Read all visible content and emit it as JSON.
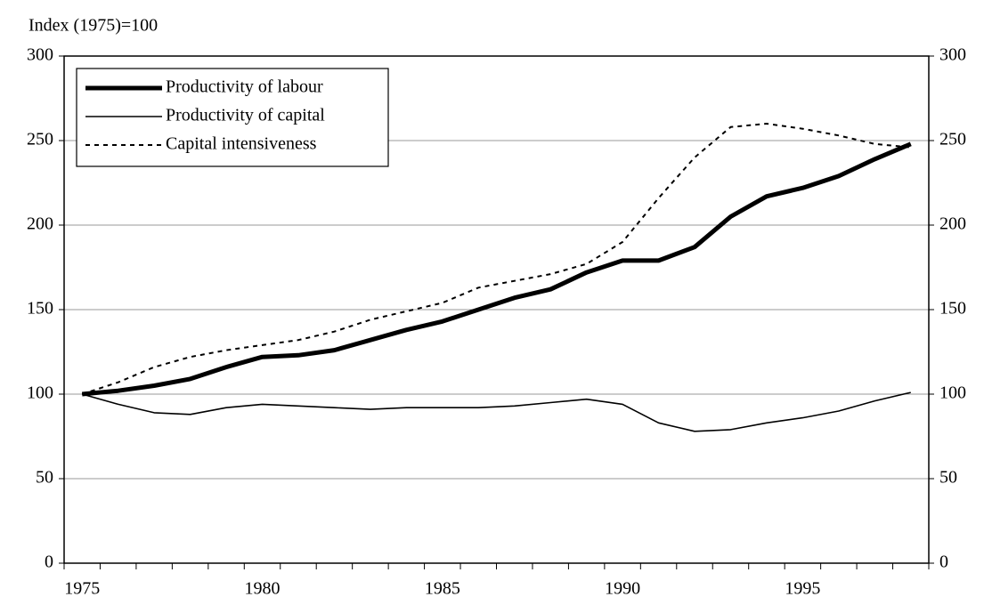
{
  "chart_data": {
    "type": "line",
    "y_label": "Index (1975)=100",
    "categories": [
      "1975",
      null,
      null,
      null,
      null,
      "1980",
      null,
      null,
      null,
      null,
      "1985",
      null,
      null,
      null,
      null,
      "1990",
      null,
      null,
      null,
      null,
      "1995",
      null,
      null,
      null
    ],
    "series": [
      {
        "name": "Productivity of labour",
        "color": "#000000",
        "style": "thick",
        "values": [
          100,
          102,
          105,
          109,
          116,
          122,
          123,
          126,
          132,
          138,
          143,
          150,
          157,
          162,
          172,
          179,
          179,
          187,
          205,
          217,
          222,
          229,
          239,
          248
        ]
      },
      {
        "name": "Productivity of capital",
        "color": "#000000",
        "style": "thin",
        "values": [
          100,
          94,
          89,
          88,
          92,
          94,
          93,
          92,
          91,
          92,
          92,
          92,
          93,
          95,
          97,
          94,
          83,
          78,
          79,
          83,
          86,
          90,
          96,
          101
        ]
      },
      {
        "name": "Capital intensiveness",
        "color": "#000000",
        "style": "dashed",
        "values": [
          100,
          107,
          116,
          122,
          126,
          129,
          132,
          137,
          144,
          149,
          154,
          163,
          167,
          171,
          177,
          190,
          216,
          240,
          258,
          260,
          257,
          253,
          248,
          246
        ]
      }
    ],
    "ylim": [
      0,
      300
    ],
    "yticks": [
      0,
      50,
      100,
      150,
      200,
      250,
      300
    ],
    "y2lim": [
      0,
      300
    ],
    "y2ticks": [
      0,
      50,
      100,
      150,
      200,
      250,
      300
    ],
    "grid": true,
    "legend": "upper-left"
  }
}
